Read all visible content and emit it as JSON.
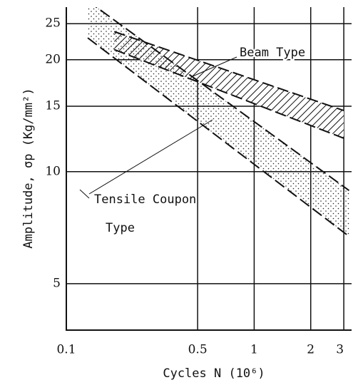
{
  "chart_data": {
    "type": "band",
    "xlabel": "Cycles N (10⁶)",
    "ylabel": "Amplitude, σp (Kg/mm²)",
    "xscale": "log",
    "yscale": "log",
    "xlim": [
      0.1,
      3.3
    ],
    "ylim": [
      3.75,
      27.7
    ],
    "xticks": [
      0.1,
      0.5,
      1,
      2,
      3
    ],
    "yticks": [
      5,
      10,
      15,
      20,
      25
    ],
    "grid": true,
    "bands": [
      {
        "name": "Beam Type",
        "fill": "hatch",
        "x": [
          0.18,
          3.0
        ],
        "lower": [
          21.3,
          12.3
        ],
        "upper": [
          23.8,
          14.6
        ]
      },
      {
        "name": "Tensile Coupon Type",
        "fill": "dots",
        "x": [
          0.13,
          3.2
        ],
        "lower": [
          22.9,
          6.7
        ],
        "upper": [
          28.8,
          8.9
        ]
      }
    ]
  }
}
